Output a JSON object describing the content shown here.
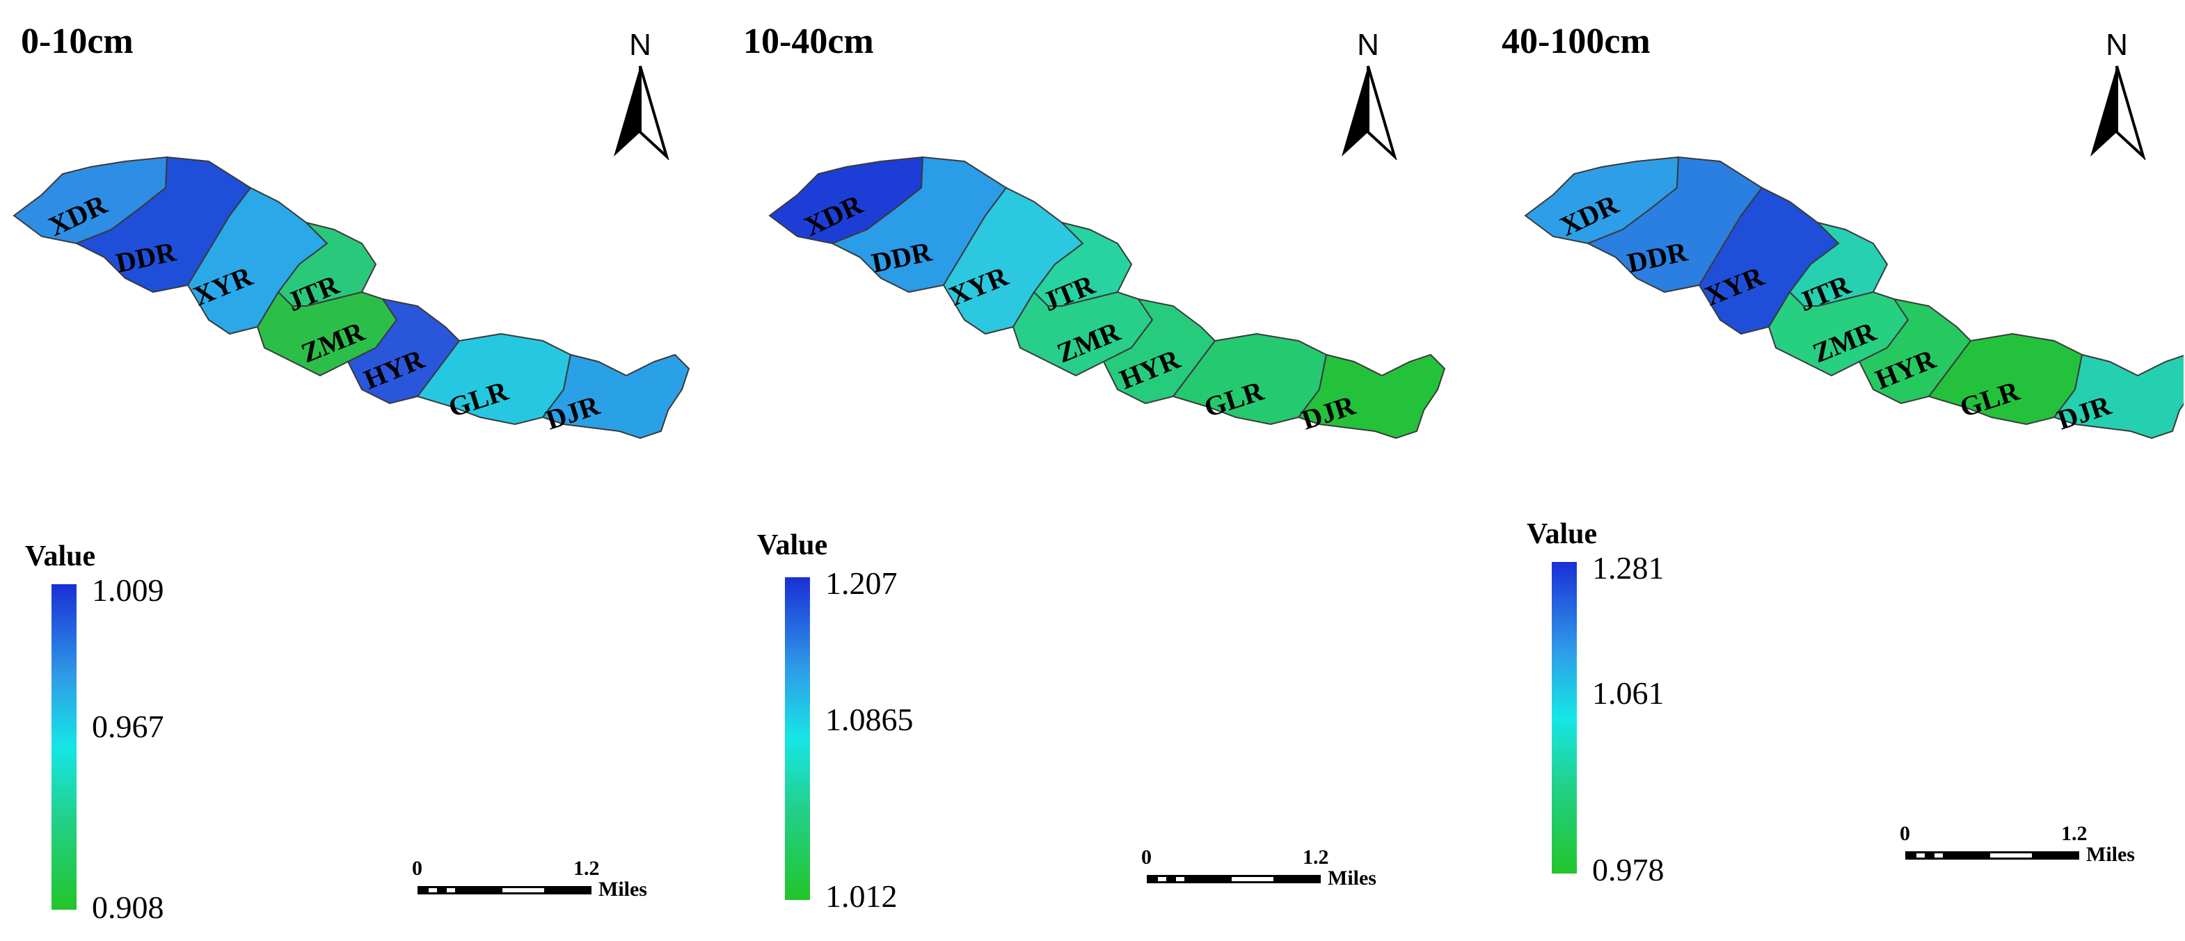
{
  "panels": [
    {
      "title": "0-10cm",
      "north": "N",
      "legend_title": "Value",
      "ticks": [
        "1.009",
        "0.967",
        "0.908"
      ],
      "scale": {
        "zero": "0",
        "max": "1.2",
        "unit": "Miles"
      },
      "regions": [
        "XDR",
        "DDR",
        "XYR",
        "JTR",
        "ZMR",
        "HYR",
        "GLR",
        "DJR"
      ],
      "region_colors": {
        "XDR": "#2e8ee6",
        "DDR": "#1f4fd8",
        "XYR": "#2aa8e8",
        "JTR": "#2ac87a",
        "ZMR": "#2bbf4a",
        "HYR": "#2a56dc",
        "GLR": "#25c8e0",
        "DJR": "#2aa0e6"
      }
    },
    {
      "title": "10-40cm",
      "north": "N",
      "legend_title": "Value",
      "ticks": [
        "1.207",
        "1.0865",
        "1.012"
      ],
      "scale": {
        "zero": "0",
        "max": "1.2",
        "unit": "Miles"
      },
      "regions": [
        "XDR",
        "DDR",
        "XYR",
        "JTR",
        "ZMR",
        "HYR",
        "GLR",
        "DJR"
      ],
      "region_colors": {
        "XDR": "#1d3ed6",
        "DDR": "#2a9ce8",
        "XYR": "#2bc8e0",
        "JTR": "#27d3a0",
        "ZMR": "#27cf8a",
        "HYR": "#26cc7c",
        "GLR": "#25c970",
        "DJR": "#23c23a"
      }
    },
    {
      "title": "40-100cm",
      "north": "N",
      "legend_title": "Value",
      "ticks": [
        "1.281",
        "1.061",
        "0.978"
      ],
      "scale": {
        "zero": "0",
        "max": "1.2",
        "unit": "Miles"
      },
      "regions": [
        "XDR",
        "DDR",
        "XYR",
        "JTR",
        "ZMR",
        "HYR",
        "GLR",
        "DJR"
      ],
      "region_colors": {
        "XDR": "#2e9ee8",
        "DDR": "#2a7fe0",
        "XYR": "#1f4fd8",
        "JTR": "#26d0b0",
        "ZMR": "#27cf80",
        "HYR": "#26c860",
        "GLR": "#24c23c",
        "DJR": "#25d0b0"
      }
    }
  ]
}
